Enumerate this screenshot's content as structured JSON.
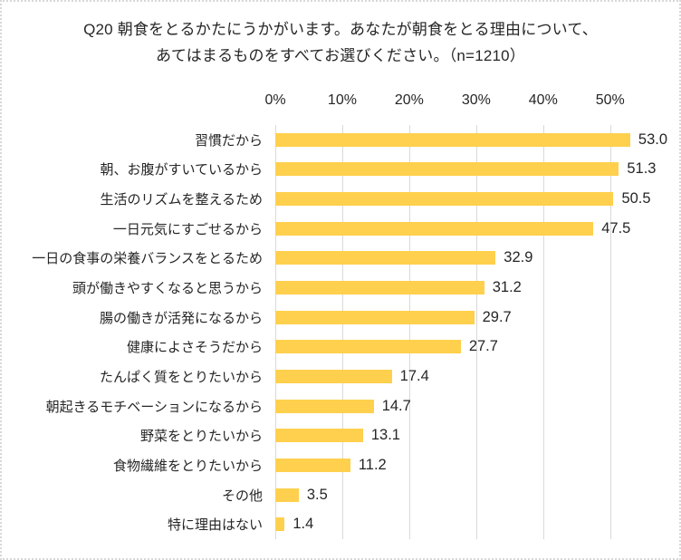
{
  "chart": {
    "title_line1": "Q20 朝食をとるかたにうかがいます。あなたが朝食をとる理由について、",
    "title_line2": "あてはまるものをすべてお選びください。（n=1210）"
  },
  "chart_data": {
    "type": "bar",
    "orientation": "horizontal",
    "title": "Q20 朝食をとるかたにうかがいます。あなたが朝食をとる理由について、あてはまるものをすべてお選びください。（n=1210）",
    "sample_size_text": "n=1210",
    "categories": [
      "習慣だから",
      "朝、お腹がすいているから",
      "生活のリズムを整えるため",
      "一日元気にすごせるから",
      "一日の食事の栄養バランスをとるため",
      "頭が働きやすくなると思うから",
      "腸の働きが活発になるから",
      "健康によさそうだから",
      "たんぱく質をとりたいから",
      "朝起きるモチベーションになるから",
      "野菜をとりたいから",
      "食物繊維をとりたいから",
      "その他",
      "特に理由はない"
    ],
    "values": [
      53.0,
      51.3,
      50.5,
      47.5,
      32.9,
      31.2,
      29.7,
      27.7,
      17.4,
      14.7,
      13.1,
      11.2,
      3.5,
      1.4
    ],
    "x_ticks": [
      "0%",
      "10%",
      "20%",
      "30%",
      "40%",
      "50%"
    ],
    "x_tick_values": [
      0,
      10,
      20,
      30,
      40,
      50
    ],
    "xlim": [
      0,
      59.5
    ],
    "grid": true,
    "legend": false,
    "axis_position": "top",
    "bar_color": "#ffd04d",
    "gridline_color": "#d9d9d9",
    "text_color": "#262626"
  }
}
